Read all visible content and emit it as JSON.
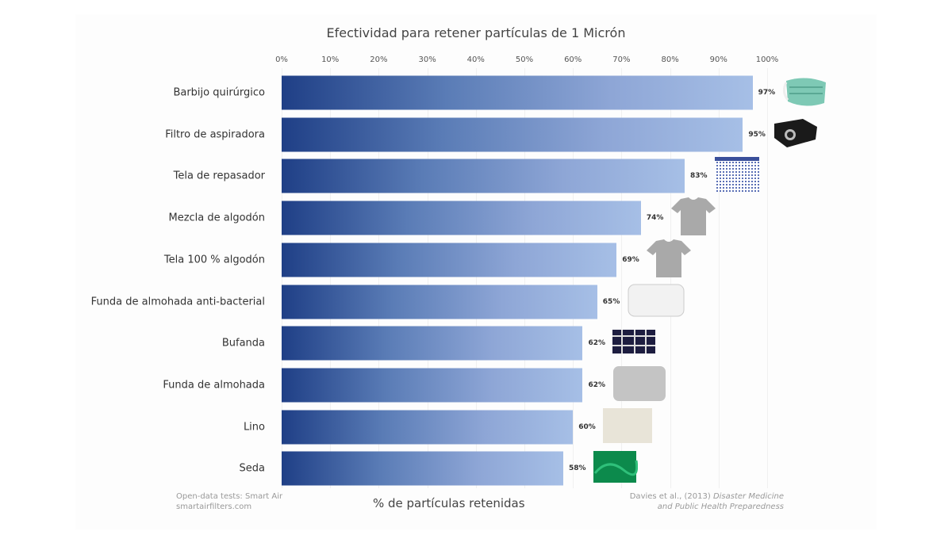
{
  "chart_data": {
    "type": "bar",
    "orientation": "horizontal",
    "title": "Efectividad para retener partículas de 1 Micrón",
    "xlabel": "% de partículas retenidas",
    "ylabel": "",
    "xlim": [
      0,
      100
    ],
    "ticks": [
      "0%",
      "10%",
      "20%",
      "30%",
      "40%",
      "50%",
      "60%",
      "70%",
      "80%",
      "90%",
      "100%"
    ],
    "categories": [
      "Barbijo quirúrgico",
      "Filtro de aspiradora",
      "Tela de repasador",
      "Mezcla de algodón",
      "Tela 100 % algodón",
      "Funda de almohada anti-bacterial",
      "Bufanda",
      "Funda de almohada",
      "Lino",
      "Seda"
    ],
    "values": [
      97,
      95,
      83,
      74,
      69,
      65,
      62,
      62,
      60,
      58
    ],
    "value_labels": [
      "97%",
      "95%",
      "83%",
      "74%",
      "69%",
      "65%",
      "62%",
      "62%",
      "60%",
      "58%"
    ],
    "thumbnails": [
      "surgical-mask",
      "vacuum-filter",
      "checkered-towel",
      "gray-tshirt",
      "gray-tshirt",
      "white-pillow",
      "plaid-scarf",
      "gray-pillow",
      "linen-fabric",
      "green-silk"
    ],
    "bar_gradient": [
      "#1f3f86",
      "#a6bfe6"
    ],
    "grid": true
  },
  "footer": {
    "source_line1": "Open-data tests: Smart Air",
    "source_line2": "smartairfilters.com",
    "ref_line1": "Davies et al., (2013) ",
    "ref_italic1": "Disaster Medicine",
    "ref_line2": "and Public Health Preparedness"
  }
}
